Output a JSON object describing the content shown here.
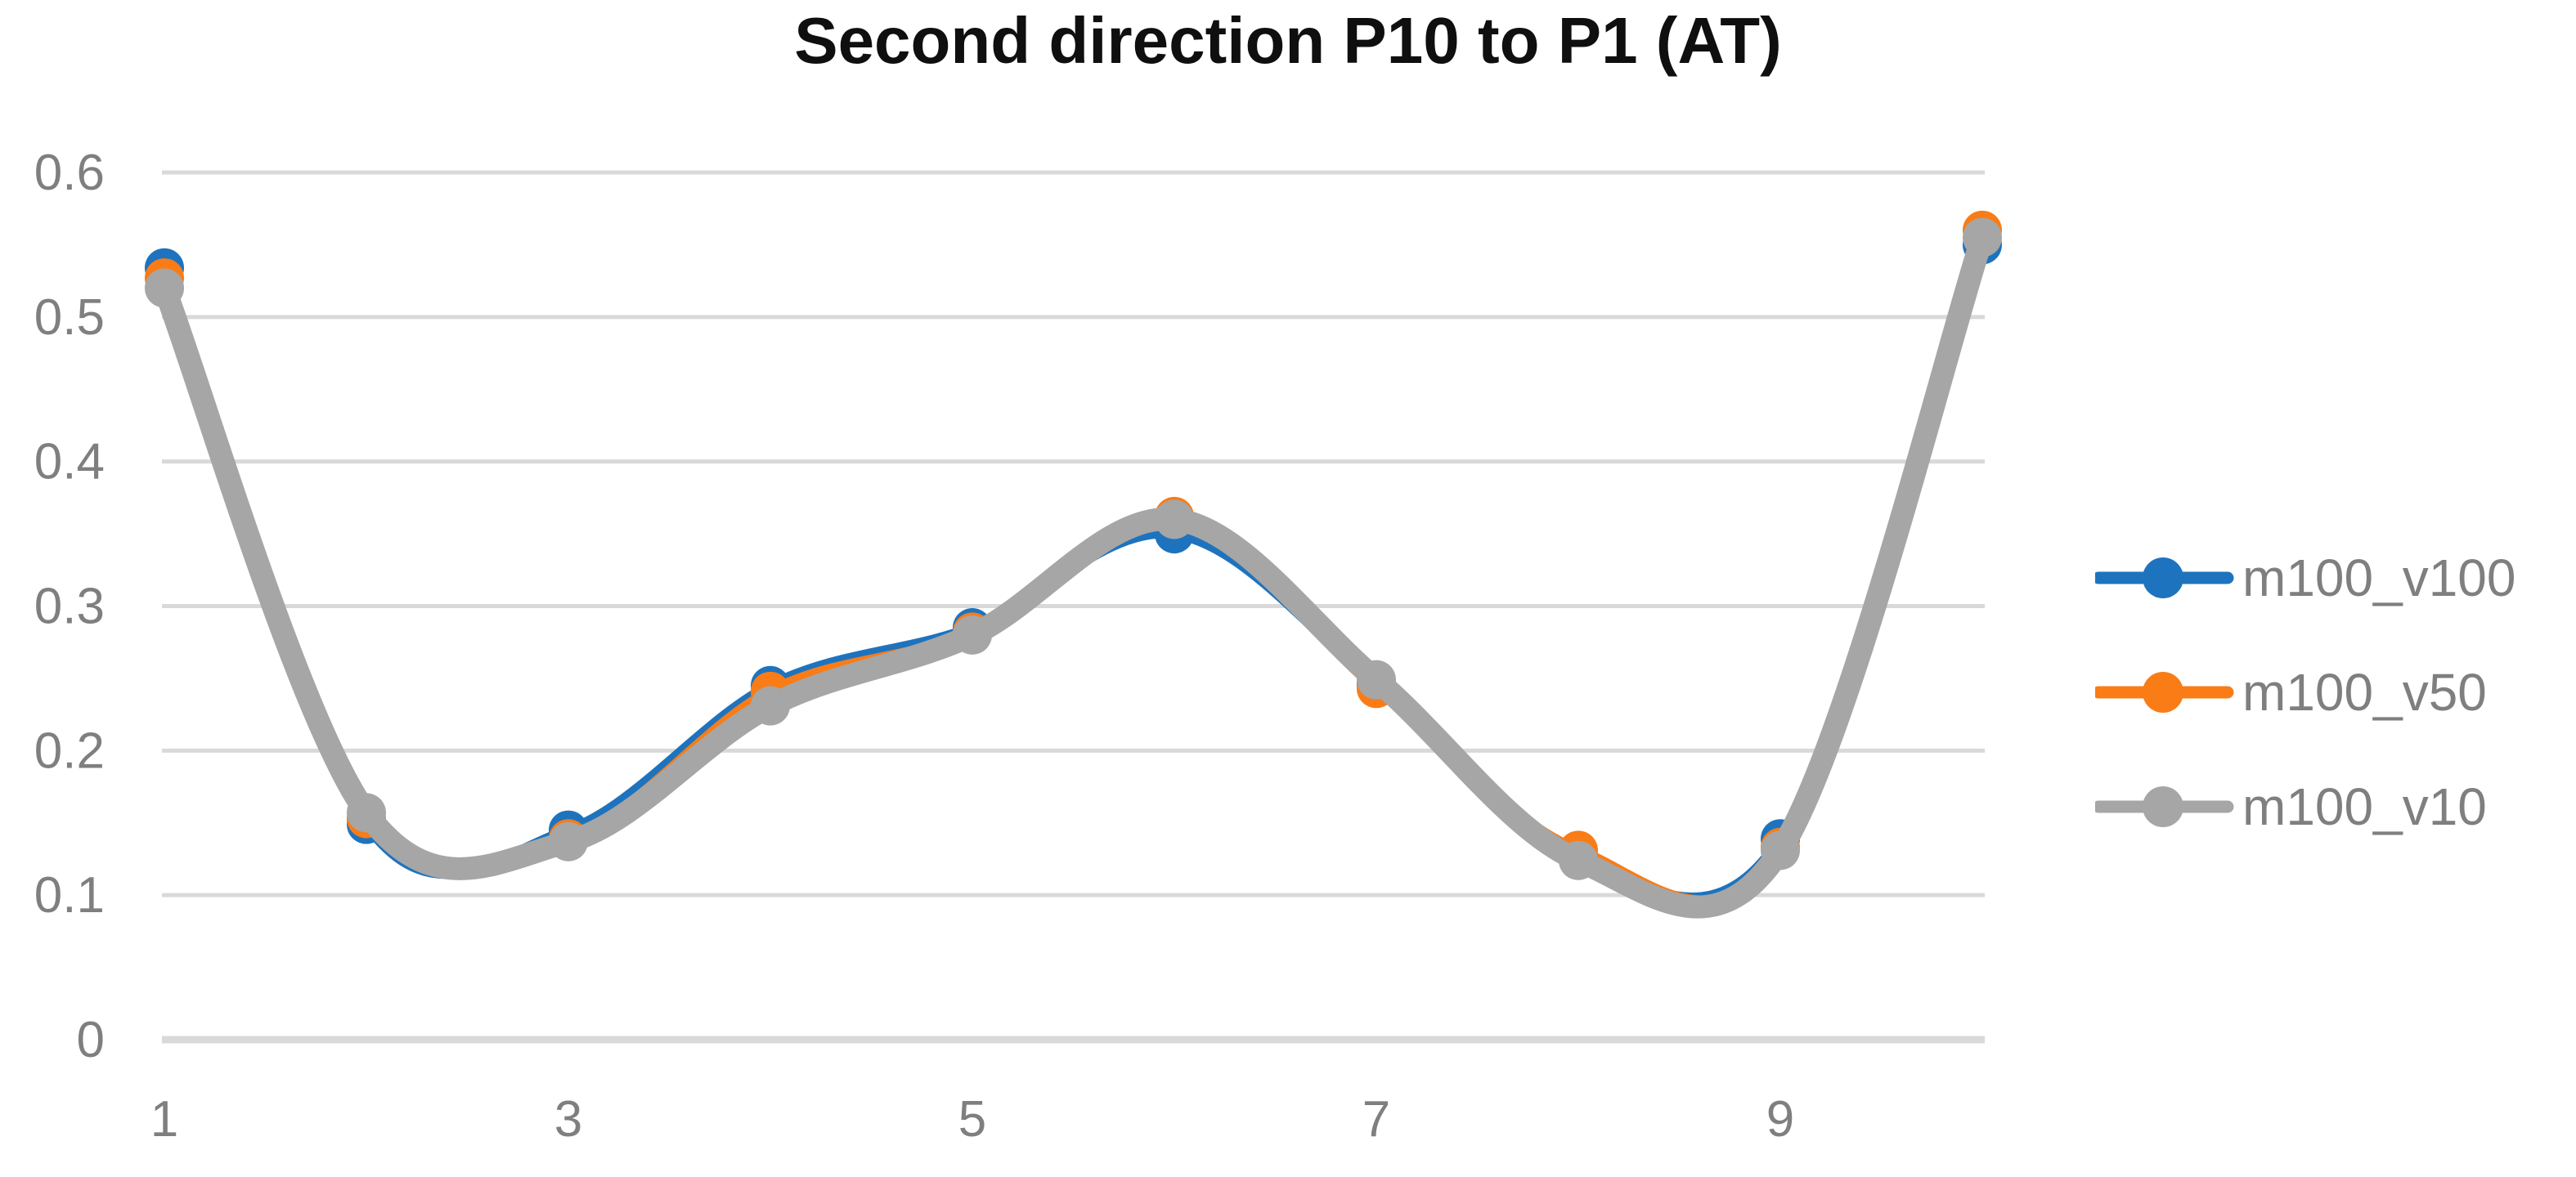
{
  "chart_data": {
    "type": "line",
    "title": "Second direction P10 to P1 (AT)",
    "line_style": "smooth",
    "markers": "circle",
    "grid": "horizontal",
    "legend_position": "right-center",
    "x": [
      1,
      2,
      3,
      4,
      5,
      6,
      7,
      8,
      9,
      10
    ],
    "x_ticks_at": [
      1,
      3,
      5,
      7,
      9
    ],
    "x_tick_labels": [
      "1",
      "3",
      "5",
      "7",
      "9"
    ],
    "ylim": [
      0,
      0.6
    ],
    "y_ticks": [
      0,
      0.1,
      0.2,
      0.3,
      0.4,
      0.5,
      0.6
    ],
    "y_tick_labels": [
      "0",
      "0.1",
      "0.2",
      "0.3",
      "0.4",
      "0.5",
      "0.6"
    ],
    "series": [
      {
        "name": "m100_v100",
        "color": "#1E73BE",
        "values": [
          0.534,
          0.149,
          0.145,
          0.245,
          0.285,
          0.35,
          0.246,
          0.125,
          0.139,
          0.55
        ]
      },
      {
        "name": "m100_v50",
        "color": "#F97C16",
        "values": [
          0.527,
          0.153,
          0.139,
          0.241,
          0.282,
          0.362,
          0.243,
          0.131,
          0.133,
          0.56
        ]
      },
      {
        "name": "m100_v10",
        "color": "#A6A6A6",
        "values": [
          0.52,
          0.157,
          0.137,
          0.231,
          0.28,
          0.36,
          0.249,
          0.124,
          0.131,
          0.555
        ]
      }
    ]
  },
  "style": {
    "background": "#FFFFFF",
    "gridline_color": "#D9D9D9",
    "axis_line_color": "#D9D9D9",
    "tick_label_color": "#7F7F7F",
    "legend_text_color": "#7F7F7F",
    "title_color": "#0F0F0F"
  }
}
